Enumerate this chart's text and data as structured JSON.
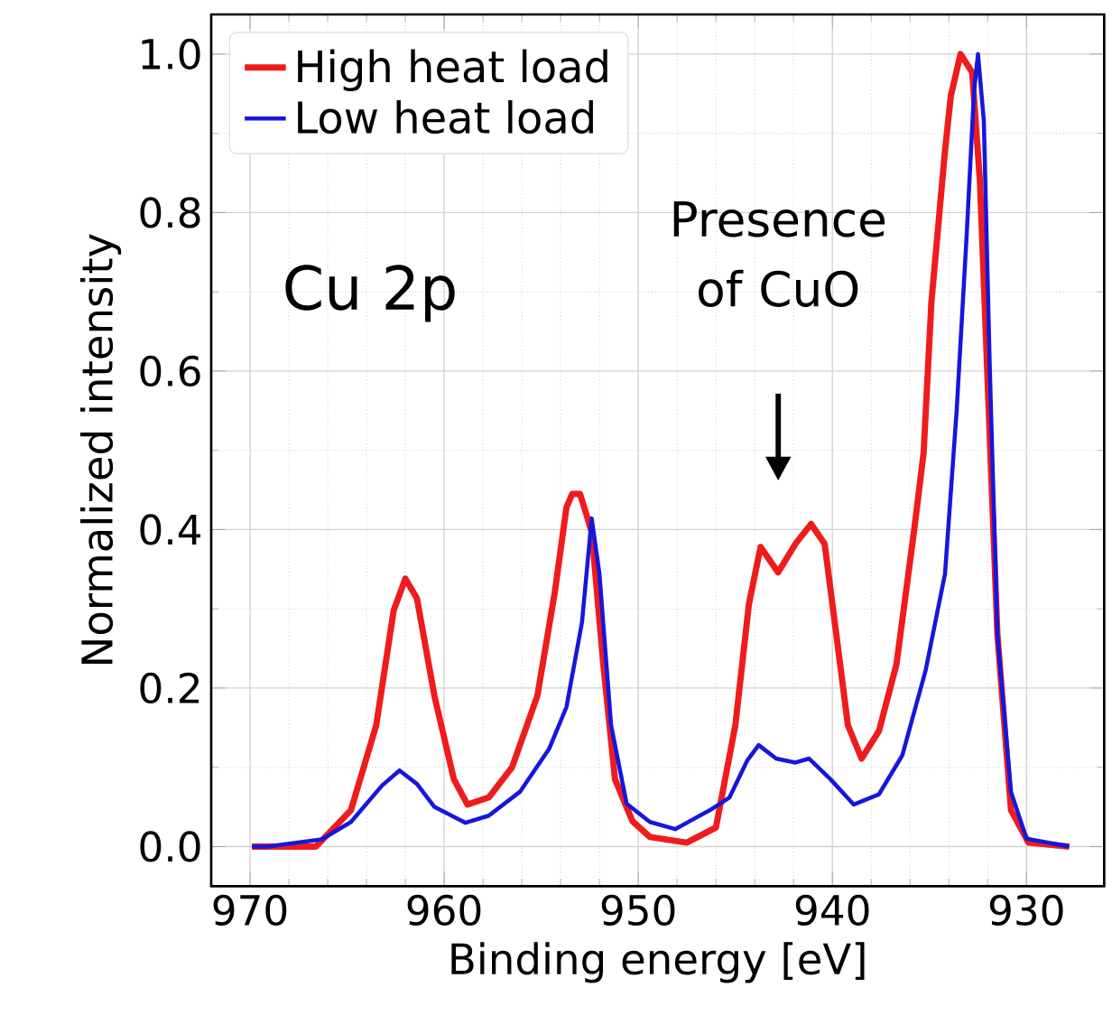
{
  "chart_data": {
    "type": "line",
    "xlabel": "Binding energy [eV]",
    "ylabel": "Normalized intensity",
    "xlim": [
      972,
      926
    ],
    "ylim": [
      -0.05,
      1.05
    ],
    "xticks": [
      970,
      960,
      950,
      940,
      930
    ],
    "yticks": [
      {
        "value": 0,
        "label": "0.0"
      },
      0.2,
      0.4,
      0.6,
      0.8,
      {
        "value": 1,
        "label": "1.0"
      }
    ],
    "grid": true,
    "legend": "top left",
    "annotations": [
      "Cu 2p",
      "Presence of CuO"
    ],
    "series": [
      {
        "name": "High heat load",
        "color": "#ee1c1c",
        "x": [
          969.9,
          966.6,
          964.8,
          963.5,
          962.6,
          962.0,
          961.4,
          960.5,
          959.5,
          958.8,
          957.7,
          956.5,
          955.2,
          954.3,
          953.7,
          953.4,
          953.0,
          952.4,
          951.8,
          951.2,
          950.3,
          949.4,
          947.5,
          946.0,
          945.0,
          944.3,
          943.7,
          942.8,
          941.9,
          941.1,
          940.4,
          939.8,
          939.2,
          938.5,
          937.6,
          936.7,
          935.8,
          935.3,
          934.9,
          934.2,
          933.9,
          933.4,
          932.8,
          932.4,
          931.8,
          931.5,
          930.8,
          929.9,
          927.8
        ],
        "values": [
          0.0,
          0.0,
          0.046,
          0.153,
          0.298,
          0.338,
          0.313,
          0.19,
          0.085,
          0.053,
          0.062,
          0.1,
          0.19,
          0.321,
          0.428,
          0.445,
          0.445,
          0.397,
          0.23,
          0.085,
          0.032,
          0.012,
          0.005,
          0.024,
          0.153,
          0.306,
          0.378,
          0.346,
          0.382,
          0.407,
          0.382,
          0.268,
          0.153,
          0.111,
          0.146,
          0.23,
          0.397,
          0.497,
          0.687,
          0.878,
          0.947,
          1.0,
          0.977,
          0.84,
          0.458,
          0.268,
          0.046,
          0.005,
          0.0
        ]
      },
      {
        "name": "Low heat load",
        "color": "#1616dd",
        "x": [
          969.9,
          969.1,
          966.3,
          964.8,
          963.2,
          962.3,
          961.4,
          960.5,
          958.9,
          957.7,
          956.1,
          954.6,
          953.7,
          952.9,
          952.4,
          952.0,
          951.4,
          950.6,
          949.4,
          948.1,
          946.3,
          945.3,
          944.4,
          943.8,
          942.9,
          941.9,
          941.2,
          940.1,
          938.9,
          937.6,
          936.4,
          935.2,
          934.2,
          933.6,
          933.1,
          932.7,
          932.5,
          932.2,
          931.9,
          931.5,
          930.8,
          930.0,
          927.8
        ],
        "values": [
          0.0,
          0.0,
          0.009,
          0.031,
          0.077,
          0.096,
          0.079,
          0.05,
          0.03,
          0.039,
          0.069,
          0.123,
          0.176,
          0.283,
          0.414,
          0.344,
          0.153,
          0.054,
          0.031,
          0.022,
          0.046,
          0.062,
          0.108,
          0.128,
          0.111,
          0.106,
          0.111,
          0.085,
          0.053,
          0.066,
          0.115,
          0.222,
          0.344,
          0.55,
          0.764,
          0.954,
          1.0,
          0.916,
          0.611,
          0.268,
          0.069,
          0.01,
          0.0
        ]
      }
    ]
  }
}
